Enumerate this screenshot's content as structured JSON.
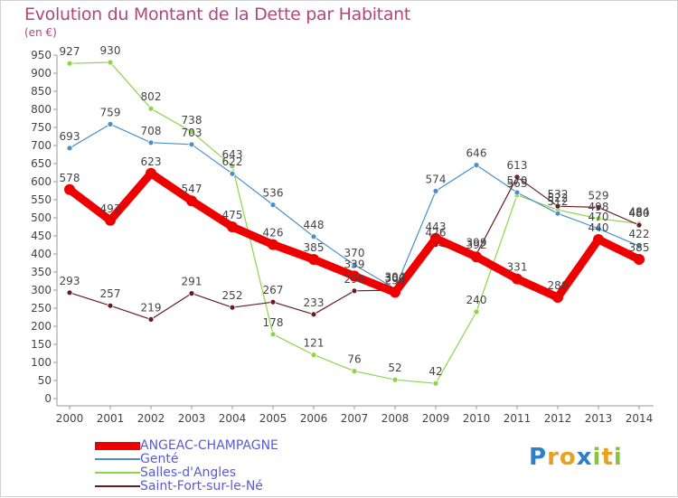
{
  "chart_data": {
    "type": "line",
    "title": "Evolution du Montant de la Dette par Habitant",
    "unit_label": "(en €)",
    "x": [
      "2000",
      "2001",
      "2002",
      "2003",
      "2004",
      "2005",
      "2006",
      "2007",
      "2008",
      "2009",
      "2010",
      "2011",
      "2012",
      "2013",
      "2014"
    ],
    "ylim": [
      0,
      950
    ],
    "yticks": [
      0,
      50,
      100,
      150,
      200,
      250,
      300,
      350,
      400,
      450,
      500,
      550,
      600,
      650,
      700,
      750,
      800,
      850,
      900,
      950
    ],
    "grid": false,
    "legend_position": "bottom-left",
    "series": [
      {
        "name": "ANGEAC-CHAMPAGNE",
        "color": "#ee0000",
        "values": [
          578,
          493,
          623,
          547,
          475,
          426,
          385,
          339,
          294,
          443,
          392,
          331,
          280,
          440,
          385
        ]
      },
      {
        "name": "Genté",
        "color": "#4a90c8",
        "values": [
          693,
          759,
          708,
          703,
          622,
          536,
          448,
          370,
          304,
          574,
          646,
          570,
          512,
          470,
          422
        ]
      },
      {
        "name": "Salles-d'Angles",
        "color": "#8ed449",
        "values": [
          927,
          930,
          802,
          738,
          643,
          178,
          121,
          76,
          52,
          42,
          240,
          563,
          522,
          498,
          484
        ]
      },
      {
        "name": "Saint-Fort-sur-le-Né",
        "color": "#6a1a22",
        "values": [
          293,
          257,
          219,
          291,
          252,
          267,
          233,
          298,
          300,
          426,
          399,
          613,
          532,
          529,
          480
        ]
      }
    ]
  },
  "logo": {
    "text": "Proxiti",
    "letters": [
      "P",
      "r",
      "o",
      "x",
      "i",
      "t",
      "i"
    ],
    "colors": [
      "#2e7ec8",
      "#e8a020",
      "#e8a020",
      "#2e7ec8",
      "#8ac43e",
      "#e8a020",
      "#8ac43e"
    ]
  }
}
